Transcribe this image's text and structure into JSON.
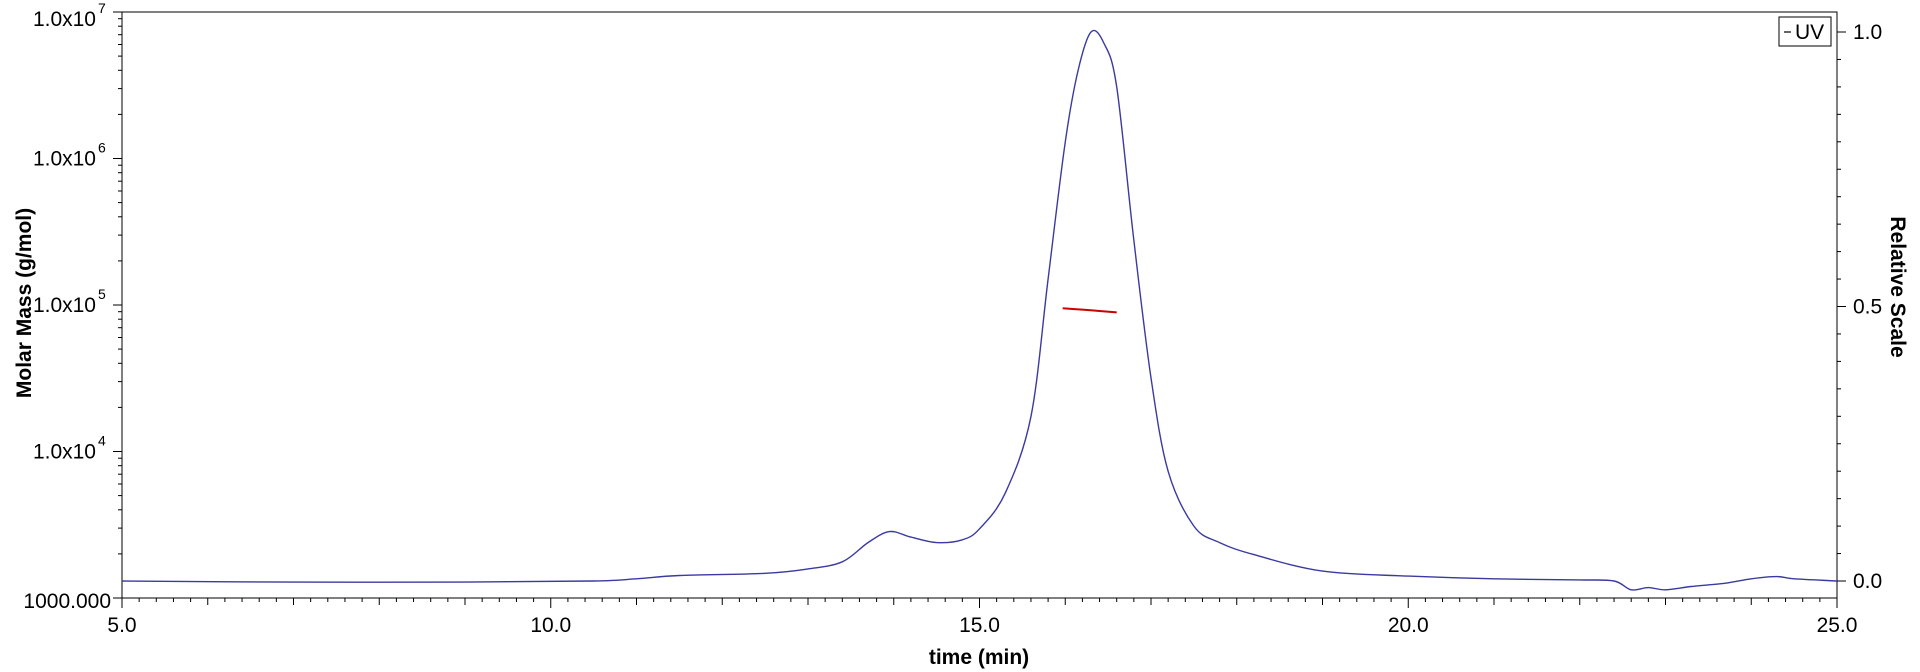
{
  "chart_data": {
    "type": "line",
    "xlabel": "time (min)",
    "ylabel_left": "Molar Mass (g/mol)",
    "ylabel_right": "Relative Scale",
    "xlim": [
      5,
      25
    ],
    "ylim_left": [
      1000,
      10000000
    ],
    "ylim_left_scale": "log",
    "ylim_right": [
      0,
      1
    ],
    "x_ticks": [
      {
        "value": 5,
        "label": "5.0"
      },
      {
        "value": 10,
        "label": "10.0"
      },
      {
        "value": 15,
        "label": "15.0"
      },
      {
        "value": 20,
        "label": "20.0"
      },
      {
        "value": 25,
        "label": "25.0"
      }
    ],
    "y_left_ticks": [
      {
        "value": 1000,
        "base": "1000.000",
        "exp": ""
      },
      {
        "value": 10000,
        "base": "1.0x10",
        "exp": "4"
      },
      {
        "value": 100000,
        "base": "1.0x10",
        "exp": "5"
      },
      {
        "value": 1000000,
        "base": "1.0x10",
        "exp": "6"
      },
      {
        "value": 10000000,
        "base": "1.0x10",
        "exp": "7"
      }
    ],
    "y_right_ticks": [
      {
        "value": 0,
        "label": "0.0"
      },
      {
        "value": 0.5,
        "label": "0.5"
      },
      {
        "value": 1,
        "label": "1.0"
      }
    ],
    "legend": {
      "position": "top-right",
      "entries": [
        {
          "label": "UV",
          "color": "#3a3aa0"
        }
      ]
    },
    "series": [
      {
        "name": "UV",
        "axis": "right",
        "color": "#3a3aa0",
        "x": [
          5.0,
          7.0,
          9.0,
          10.5,
          11.0,
          11.5,
          12.5,
          13.0,
          13.4,
          13.7,
          13.95,
          14.2,
          14.5,
          14.8,
          15.0,
          15.3,
          15.6,
          15.8,
          16.0,
          16.15,
          16.3,
          16.45,
          16.6,
          16.8,
          17.0,
          17.2,
          17.5,
          17.8,
          18.2,
          19.0,
          20.0,
          21.0,
          22.0,
          22.4,
          22.6,
          22.8,
          23.0,
          23.3,
          23.7,
          24.0,
          24.3,
          24.5,
          25.0
        ],
        "y": [
          0.0,
          -0.002,
          -0.002,
          0.0,
          0.004,
          0.01,
          0.014,
          0.022,
          0.035,
          0.07,
          0.09,
          0.08,
          0.07,
          0.075,
          0.095,
          0.16,
          0.3,
          0.55,
          0.8,
          0.93,
          1.0,
          0.98,
          0.9,
          0.62,
          0.37,
          0.2,
          0.1,
          0.07,
          0.048,
          0.018,
          0.009,
          0.004,
          0.002,
          0.0,
          -0.016,
          -0.012,
          -0.016,
          -0.01,
          -0.004,
          0.004,
          0.008,
          0.004,
          0.0
        ]
      },
      {
        "name": "",
        "axis": "left",
        "color": "#cc0000",
        "x": [
          15.97,
          16.2,
          16.4,
          16.6
        ],
        "y": [
          95000,
          93000,
          91000,
          89000
        ]
      }
    ]
  }
}
